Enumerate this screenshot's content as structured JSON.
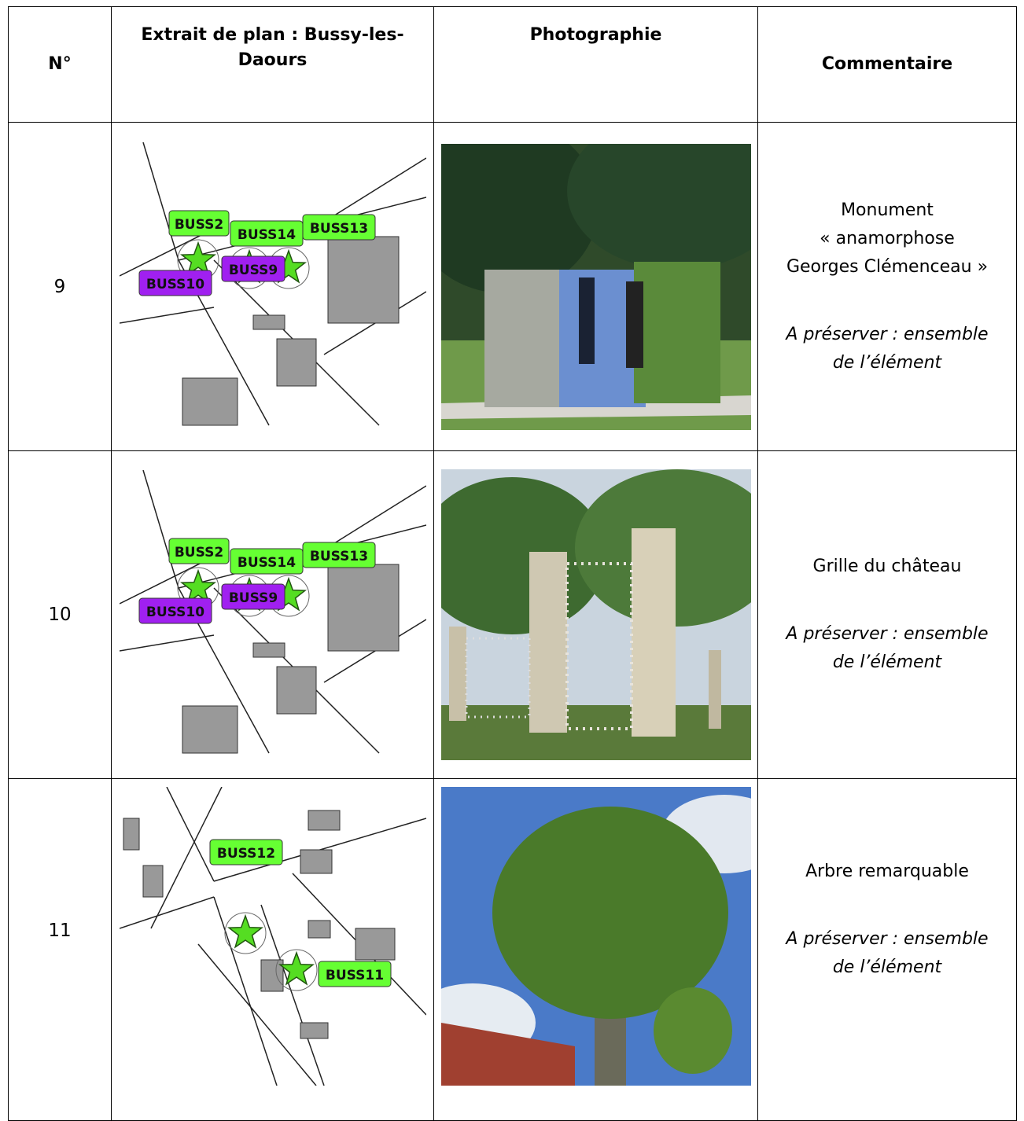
{
  "table": {
    "header": [
      "N°",
      "Extrait de plan : Bussy-les-Daours",
      "Photographie",
      "Commentaire"
    ],
    "rows": [
      {
        "number": "9",
        "map_labels": [
          {
            "text": "BUSS2",
            "color": "#66ff33"
          },
          {
            "text": "BUSS14",
            "color": "#66ff33"
          },
          {
            "text": "BUSS13",
            "color": "#66ff33"
          },
          {
            "text": "BUSS9",
            "color": "#a020f0"
          },
          {
            "text": "BUSS10",
            "color": "#a020f0"
          }
        ],
        "comment": [
          "Monument",
          "« anamorphose",
          "Georges Clémenceau »"
        ],
        "note": [
          "A préserver : ensemble",
          "de l’élément"
        ]
      },
      {
        "number": "10",
        "map_labels": [
          {
            "text": "BUSS2",
            "color": "#66ff33"
          },
          {
            "text": "BUSS14",
            "color": "#66ff33"
          },
          {
            "text": "BUSS13",
            "color": "#66ff33"
          },
          {
            "text": "BUSS9",
            "color": "#a020f0"
          },
          {
            "text": "BUSS10",
            "color": "#a020f0"
          }
        ],
        "comment": [
          "Grille du château"
        ],
        "note": [
          "A préserver : ensemble",
          "de l’élément"
        ]
      },
      {
        "number": "11",
        "map_labels": [
          {
            "text": "BUSS12",
            "color": "#66ff33"
          },
          {
            "text": "BUSS11",
            "color": "#66ff33"
          }
        ],
        "comment": [
          "Arbre remarquable"
        ],
        "note": [
          "A préserver : ensemble",
          "de l’élément"
        ]
      }
    ]
  }
}
